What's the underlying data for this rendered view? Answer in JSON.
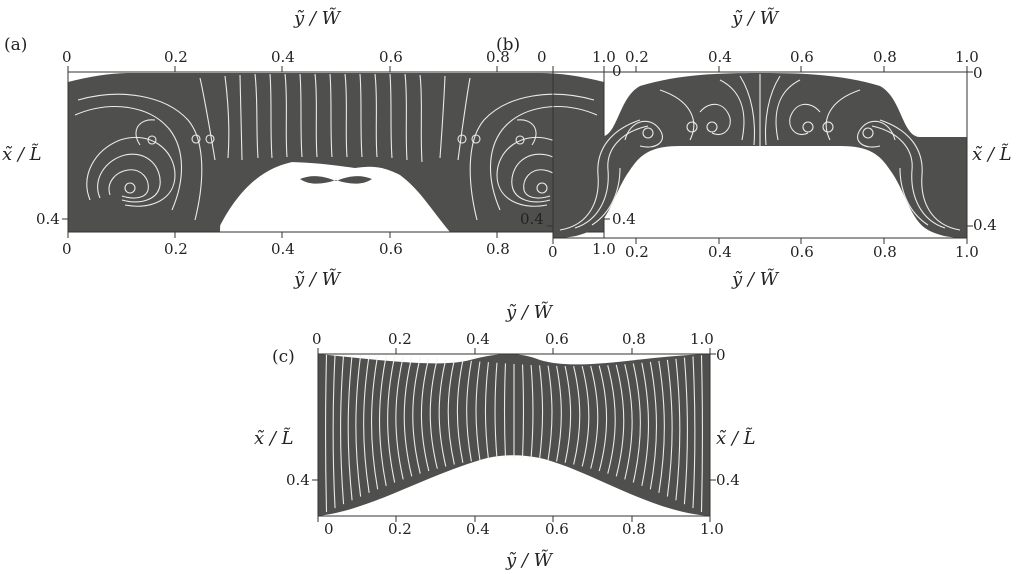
{
  "figure": {
    "panels": [
      {
        "id": "a",
        "label": "(a)",
        "y_axis_label_top": "ỹ / W̃",
        "y_axis_label_bottom": "ỹ / W̃",
        "x_axis_label_left": "x̃ / L̃",
        "x_axis_label_right": "",
        "top_ticks": [
          "0",
          "0.2",
          "0.4",
          "0.6",
          "0.8",
          "1.0"
        ],
        "bottom_ticks": [
          "0",
          "0.2",
          "0.4",
          "0.6",
          "0.8",
          "1.0"
        ],
        "left_ticks": [
          "0.4"
        ],
        "right_ticks": [
          "0",
          "0.4"
        ]
      },
      {
        "id": "b",
        "label": "(b)",
        "y_axis_label_top": "ỹ / W̃",
        "y_axis_label_bottom": "ỹ / W̃",
        "x_axis_label_left": "",
        "x_axis_label_right": "x̃ / L̃",
        "top_ticks": [
          "0",
          "0.2",
          "0.4",
          "0.6",
          "0.8",
          "1.0"
        ],
        "bottom_ticks": [
          "0",
          "0.2",
          "0.4",
          "0.6",
          "0.8",
          "1.0"
        ],
        "left_ticks": [
          "0.4"
        ],
        "right_ticks": [
          "0",
          "0.4"
        ]
      },
      {
        "id": "c",
        "label": "(c)",
        "y_axis_label_top": "ỹ / W̃",
        "y_axis_label_bottom": "ỹ / W̃",
        "x_axis_label_left": "x̃ / L̃",
        "x_axis_label_right": "x̃ / L̃",
        "top_ticks": [
          "0",
          "0.2",
          "0.4",
          "0.6",
          "0.8",
          "1.0"
        ],
        "bottom_ticks": [
          "0",
          "0.2",
          "0.4",
          "0.6",
          "0.8",
          "1.0"
        ],
        "left_ticks": [
          "0.4"
        ],
        "right_ticks": [
          "0",
          "0.4"
        ]
      }
    ],
    "colors": {
      "fluid_region": "#4f4f4d",
      "streamlines": "#f2f2f2",
      "axes": "#333333"
    }
  }
}
